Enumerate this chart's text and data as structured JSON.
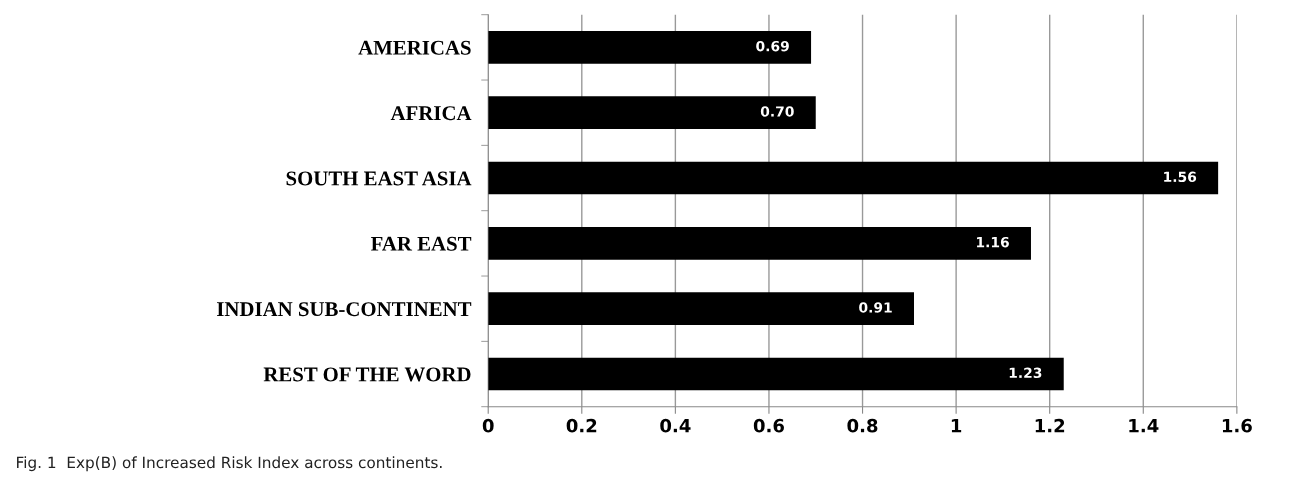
{
  "chart_data": {
    "type": "bar",
    "orientation": "horizontal",
    "categories": [
      "AMERICAS",
      "AFRICA",
      "SOUTH EAST ASIA",
      "FAR EAST",
      "INDIAN SUB-CONTINENT",
      "REST OF THE WORD"
    ],
    "values": [
      0.69,
      0.7,
      1.56,
      1.16,
      0.91,
      1.23
    ],
    "color": "#000000",
    "value_labels": [
      "0.69",
      "0.70",
      "1.56",
      "1.16",
      "0.91",
      "1.23"
    ],
    "xlim": [
      0,
      1.6
    ],
    "xticks": [
      0,
      0.2,
      0.4,
      0.6,
      0.8,
      1,
      1.2,
      1.4,
      1.6
    ],
    "grid": "x",
    "annotations": [
      "Fig. 1  Exp(B) of Increased Risk Index across continents."
    ]
  }
}
